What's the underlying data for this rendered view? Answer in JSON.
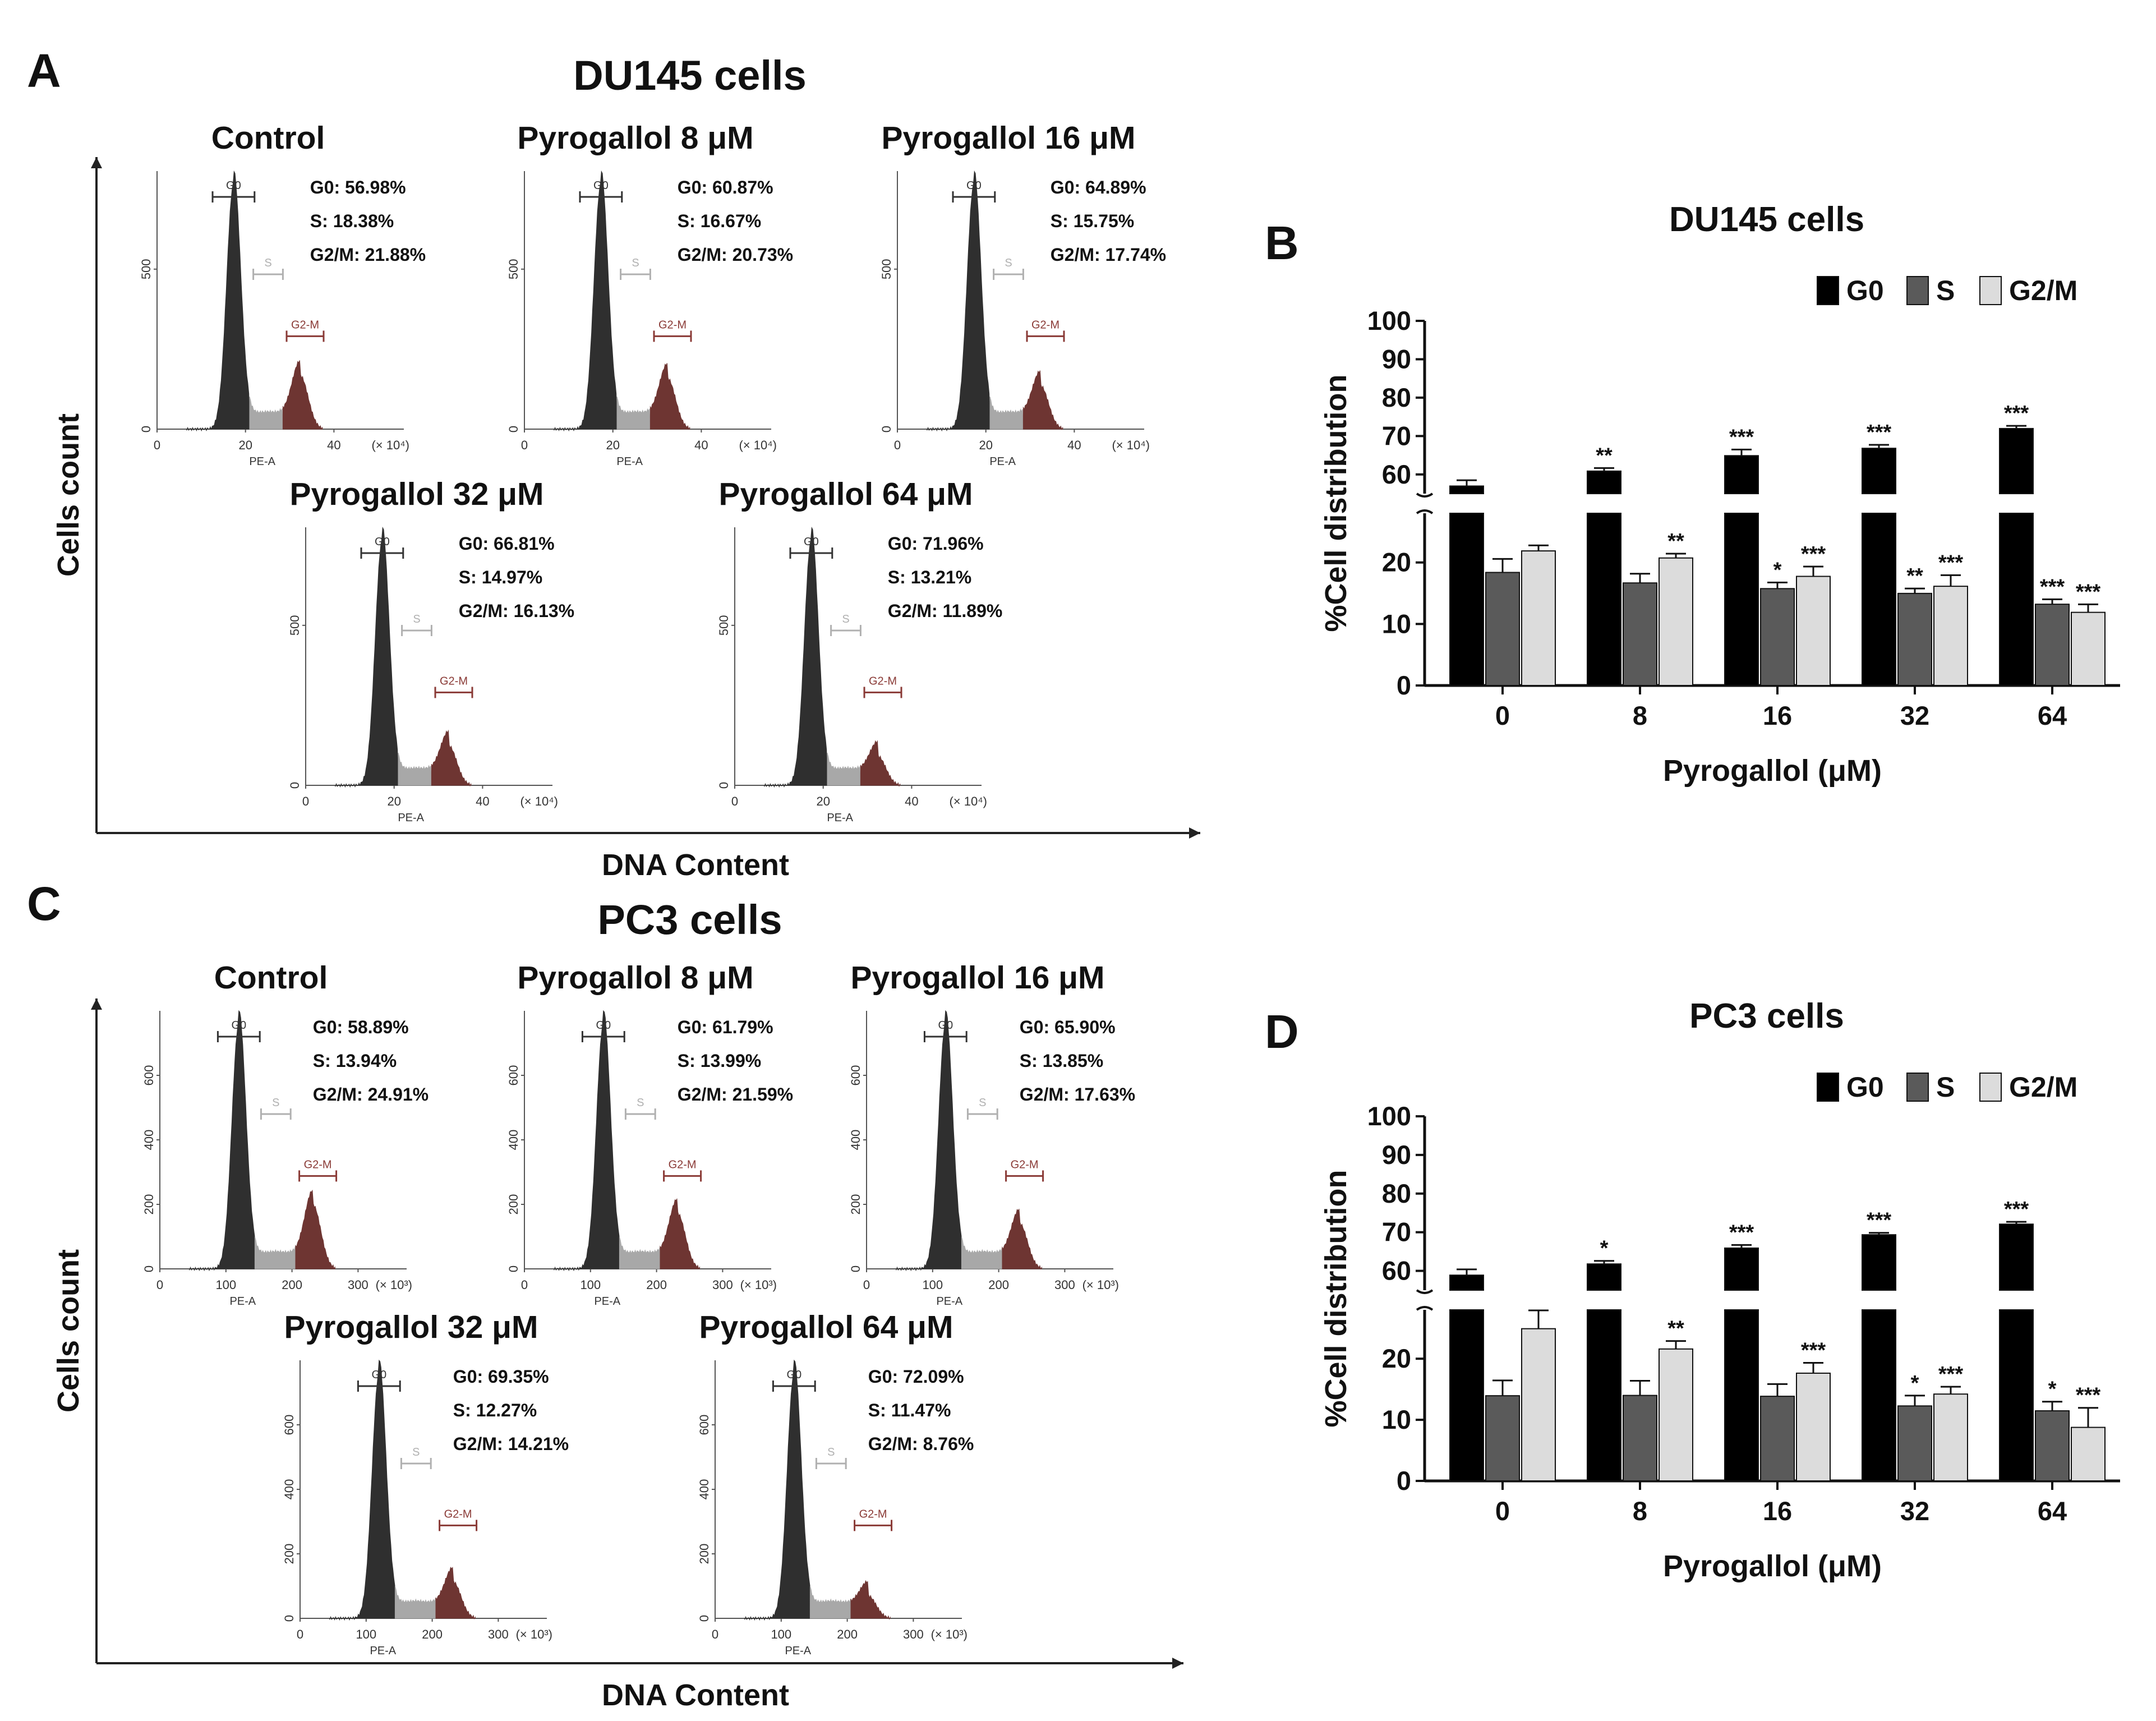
{
  "panels": {
    "A": {
      "letter": "A",
      "title": "DU145 cells",
      "ylabel": "Cells count",
      "xlabel": "DNA Content",
      "x_ticks": [
        "0",
        "20",
        "40"
      ],
      "x_unit": "(× 10⁴)",
      "y_tick": "500",
      "hist_xlabel": "PE-A",
      "gates": [
        "G0",
        "S",
        "G2-M"
      ],
      "histograms": [
        {
          "title": "Control",
          "g0": "G0: 56.98%",
          "s": "S: 18.38%",
          "g2m": "G2/M: 21.88%"
        },
        {
          "title": "Pyrogallol 8 μM",
          "g0": "G0: 60.87%",
          "s": "S: 16.67%",
          "g2m": "G2/M: 20.73%"
        },
        {
          "title": "Pyrogallol 16 μM",
          "g0": "G0: 64.89%",
          "s": "S: 15.75%",
          "g2m": "G2/M: 17.74%"
        },
        {
          "title": "Pyrogallol 32 μM",
          "g0": "G0: 66.81%",
          "s": "S: 14.97%",
          "g2m": "G2/M: 16.13%"
        },
        {
          "title": "Pyrogallol 64 μM",
          "g0": "G0: 71.96%",
          "s": "S: 13.21%",
          "g2m": "G2/M: 11.89%"
        }
      ]
    },
    "C": {
      "letter": "C",
      "title": "PC3 cells",
      "ylabel": "Cells count",
      "xlabel": "DNA Content",
      "x_ticks": [
        "0",
        "100",
        "200",
        "300"
      ],
      "x_unit": "(× 10³)",
      "y_ticks": [
        "200",
        "400",
        "600"
      ],
      "hist_xlabel": "PE-A",
      "gates": [
        "G0",
        "S",
        "G2-M"
      ],
      "histograms": [
        {
          "title": "Control",
          "g0": "G0: 58.89%",
          "s": "S: 13.94%",
          "g2m": "G2/M: 24.91%"
        },
        {
          "title": "Pyrogallol 8 μM",
          "g0": "G0: 61.79%",
          "s": "S: 13.99%",
          "g2m": "G2/M: 21.59%"
        },
        {
          "title": "Pyrogallol 16 μM",
          "g0": "G0: 65.90%",
          "s": "S: 13.85%",
          "g2m": "G2/M: 17.63%"
        },
        {
          "title": "Pyrogallol 32 μM",
          "g0": "G0: 69.35%",
          "s": "S: 12.27%",
          "g2m": "G2/M: 14.21%"
        },
        {
          "title": "Pyrogallol 64 μM",
          "g0": "G0: 72.09%",
          "s": "S: 11.47%",
          "g2m": "G2/M: 8.76%"
        }
      ]
    }
  },
  "colors": {
    "g0": "#000000",
    "s": "#5a5a5a",
    "g2m": "#dcdcdc",
    "hist_g0": "#2f2f2f",
    "hist_s": "#a8a8a8",
    "hist_g2m": "#6e3532",
    "gate_g0": "#333333",
    "gate_s": "#b0b0b0",
    "gate_g2m": "#8a3a36"
  },
  "chart_data": [
    {
      "panel": "B",
      "type": "bar",
      "title": "DU145 cells",
      "xlabel": "Pyrogallol (μM)",
      "ylabel": "%Cell distribution",
      "categories": [
        "0",
        "8",
        "16",
        "32",
        "64"
      ],
      "y_ticks": [
        "0",
        "10",
        "20",
        "60",
        "70",
        "80",
        "90",
        "100"
      ],
      "ylim": [
        0,
        100
      ],
      "axis_break": [
        28,
        55
      ],
      "legend": [
        "G0",
        "S",
        "G2/M"
      ],
      "series": [
        {
          "name": "G0",
          "values": [
            56.98,
            60.87,
            64.89,
            66.81,
            71.96
          ],
          "errors": [
            1.5,
            0.8,
            1.6,
            0.9,
            0.7
          ],
          "sig": [
            "",
            "**",
            "***",
            "***",
            "***"
          ]
        },
        {
          "name": "S",
          "values": [
            18.38,
            16.67,
            15.75,
            14.97,
            13.21
          ],
          "errors": [
            2.2,
            1.5,
            1.0,
            0.8,
            0.8
          ],
          "sig": [
            "",
            "",
            "*",
            "**",
            "***"
          ]
        },
        {
          "name": "G2/M",
          "values": [
            21.88,
            20.73,
            17.74,
            16.13,
            11.89
          ],
          "errors": [
            0.9,
            0.7,
            1.6,
            1.8,
            1.3
          ],
          "sig": [
            "",
            "**",
            "***",
            "***",
            "***"
          ]
        }
      ]
    },
    {
      "panel": "D",
      "type": "bar",
      "title": "PC3 cells",
      "xlabel": "Pyrogallol (μM)",
      "ylabel": "%Cell distribution",
      "categories": [
        "0",
        "8",
        "16",
        "32",
        "64"
      ],
      "y_ticks": [
        "0",
        "10",
        "20",
        "60",
        "70",
        "80",
        "90",
        "100"
      ],
      "ylim": [
        0,
        100
      ],
      "axis_break": [
        28,
        55
      ],
      "legend": [
        "G0",
        "S",
        "G2/M"
      ],
      "series": [
        {
          "name": "G0",
          "values": [
            58.89,
            61.79,
            65.9,
            69.35,
            72.09
          ],
          "errors": [
            1.5,
            0.8,
            0.8,
            0.5,
            0.6
          ],
          "sig": [
            "",
            "*",
            "***",
            "***",
            "***"
          ]
        },
        {
          "name": "S",
          "values": [
            13.94,
            13.99,
            13.85,
            12.27,
            11.47
          ],
          "errors": [
            2.5,
            2.4,
            2.0,
            1.7,
            1.5
          ],
          "sig": [
            "",
            "",
            "",
            "*",
            "*"
          ]
        },
        {
          "name": "G2/M",
          "values": [
            24.91,
            21.59,
            17.63,
            14.21,
            8.76
          ],
          "errors": [
            3.0,
            1.3,
            1.7,
            1.2,
            3.2
          ],
          "sig": [
            "",
            "**",
            "***",
            "***",
            "***"
          ]
        }
      ]
    }
  ]
}
